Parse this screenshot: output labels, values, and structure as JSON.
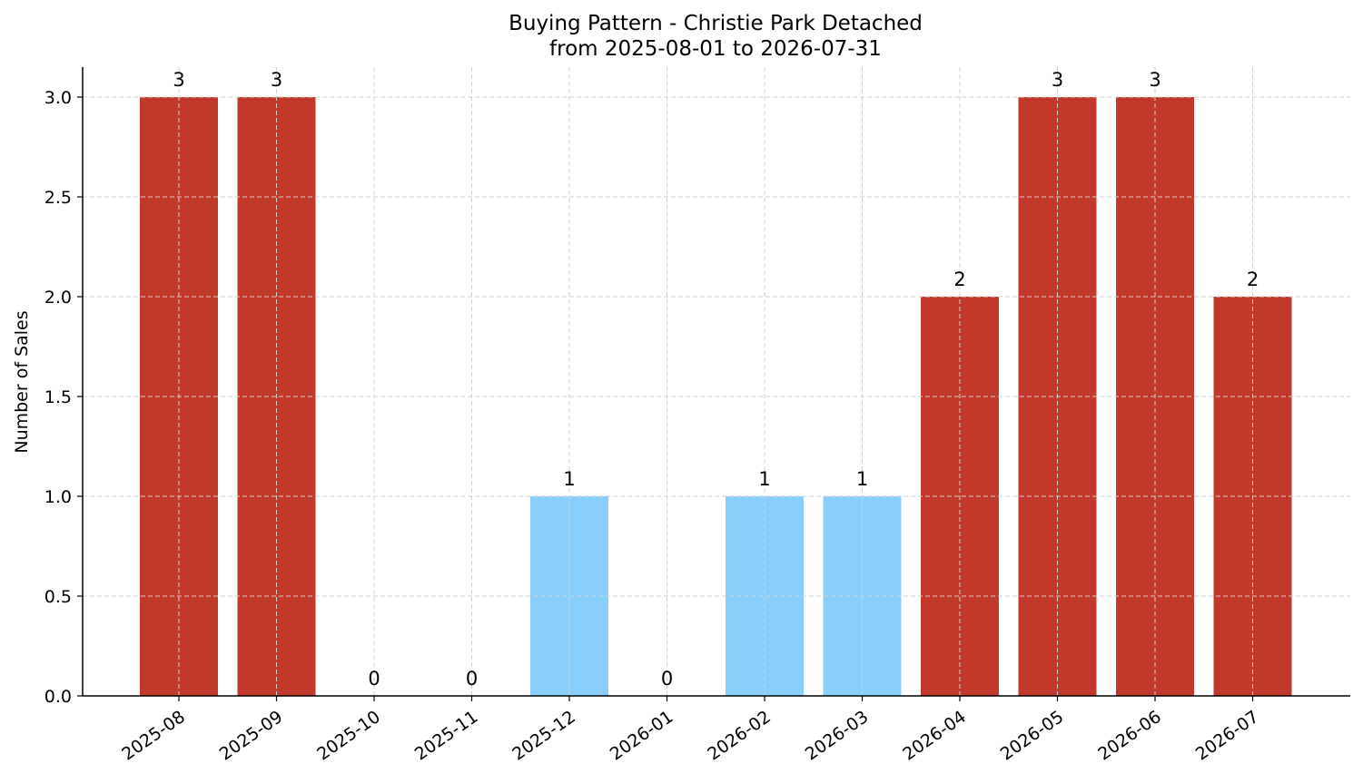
{
  "chart_data": {
    "type": "bar",
    "title": "Buying Pattern - Christie Park Detached",
    "subtitle": "from 2025-08-01 to 2026-07-31",
    "xlabel": "",
    "ylabel": "Number of Sales",
    "categories": [
      "2025-08",
      "2025-09",
      "2025-10",
      "2025-11",
      "2025-12",
      "2026-01",
      "2026-02",
      "2026-03",
      "2026-04",
      "2026-05",
      "2026-06",
      "2026-07"
    ],
    "values": [
      3,
      3,
      0,
      0,
      1,
      0,
      1,
      1,
      2,
      3,
      3,
      2
    ],
    "data_labels": [
      "3",
      "3",
      "0",
      "0",
      "1",
      "0",
      "1",
      "1",
      "2",
      "3",
      "3",
      "2"
    ],
    "yticks": [
      "0.0",
      "0.5",
      "1.0",
      "1.5",
      "2.0",
      "2.5",
      "3.0"
    ],
    "ylim": [
      0,
      3.15
    ],
    "grid": true,
    "colors": {
      "high": "#c0392b",
      "low": "#87cefa"
    }
  }
}
